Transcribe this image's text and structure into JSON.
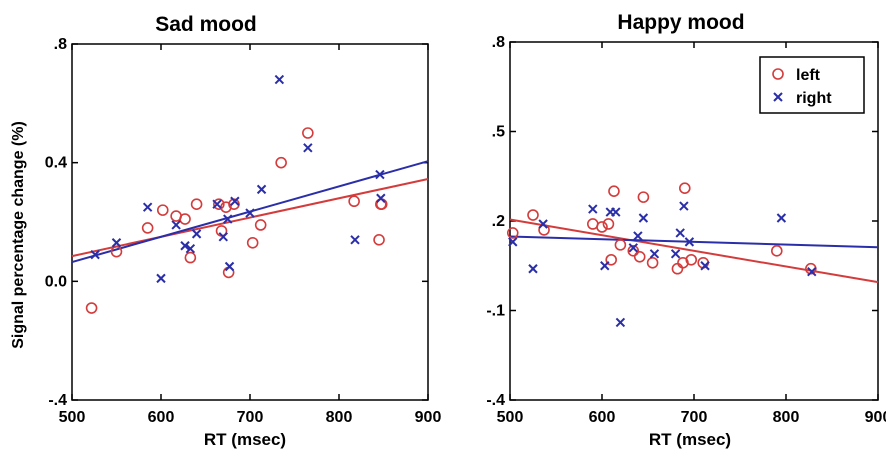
{
  "chart_data": [
    {
      "type": "scatter",
      "title": "Sad mood",
      "xlabel": "RT  (msec)",
      "ylabel": "Signal percentage change (%)",
      "xlim": [
        500,
        900
      ],
      "ylim": [
        -0.4,
        0.8
      ],
      "xticks": [
        {
          "v": 500,
          "label": "500"
        },
        {
          "v": 600,
          "label": "600"
        },
        {
          "v": 700,
          "label": "700"
        },
        {
          "v": 800,
          "label": "800"
        },
        {
          "v": 900,
          "label": "900"
        }
      ],
      "yticks": [
        {
          "v": -0.4,
          "label": "-.4"
        },
        {
          "v": 0.0,
          "label": "0.0"
        },
        {
          "v": 0.4,
          "label": "0.4"
        },
        {
          "v": 0.8,
          "label": ".8"
        }
      ],
      "series": [
        {
          "name": "left",
          "marker": "circle",
          "color": "#d43c3c",
          "points": [
            [
              522,
              -0.09
            ],
            [
              550,
              0.1
            ],
            [
              585,
              0.18
            ],
            [
              602,
              0.24
            ],
            [
              617,
              0.22
            ],
            [
              627,
              0.21
            ],
            [
              633,
              0.08
            ],
            [
              640,
              0.26
            ],
            [
              665,
              0.26
            ],
            [
              668,
              0.17
            ],
            [
              673,
              0.25
            ],
            [
              676,
              0.03
            ],
            [
              682,
              0.26
            ],
            [
              703,
              0.13
            ],
            [
              712,
              0.19
            ],
            [
              735,
              0.4
            ],
            [
              765,
              0.5
            ],
            [
              817,
              0.27
            ],
            [
              845,
              0.14
            ],
            [
              847,
              0.26
            ],
            [
              848,
              0.26
            ]
          ]
        },
        {
          "name": "right",
          "marker": "x",
          "color": "#2a2ea8",
          "points": [
            [
              526,
              0.09
            ],
            [
              550,
              0.13
            ],
            [
              585,
              0.25
            ],
            [
              600,
              0.01
            ],
            [
              617,
              0.19
            ],
            [
              627,
              0.12
            ],
            [
              633,
              0.11
            ],
            [
              640,
              0.16
            ],
            [
              663,
              0.26
            ],
            [
              670,
              0.15
            ],
            [
              675,
              0.21
            ],
            [
              677,
              0.05
            ],
            [
              683,
              0.27
            ],
            [
              700,
              0.23
            ],
            [
              713,
              0.31
            ],
            [
              733,
              0.68
            ],
            [
              765,
              0.45
            ],
            [
              818,
              0.14
            ],
            [
              846,
              0.36
            ],
            [
              847,
              0.28
            ]
          ]
        }
      ],
      "fit_lines": [
        {
          "series": "left",
          "color": "#d43c3c",
          "x": [
            500,
            900
          ],
          "y": [
            0.085,
            0.345
          ]
        },
        {
          "series": "right",
          "color": "#2a2ea8",
          "x": [
            500,
            900
          ],
          "y": [
            0.065,
            0.405
          ]
        }
      ]
    },
    {
      "type": "scatter",
      "title": "Happy mood",
      "xlabel": "RT  (msec)",
      "ylabel": "",
      "xlim": [
        500,
        900
      ],
      "ylim": [
        -0.4,
        0.8
      ],
      "xticks": [
        {
          "v": 500,
          "label": "500"
        },
        {
          "v": 600,
          "label": "600"
        },
        {
          "v": 700,
          "label": "700"
        },
        {
          "v": 800,
          "label": "800"
        },
        {
          "v": 900,
          "label": "900"
        }
      ],
      "yticks": [
        {
          "v": -0.4,
          "label": "-.4"
        },
        {
          "v": -0.1,
          "label": "-.1"
        },
        {
          "v": 0.2,
          "label": ".2"
        },
        {
          "v": 0.5,
          "label": ".5"
        },
        {
          "v": 0.8,
          "label": ".8"
        }
      ],
      "legend": {
        "position": "top-right",
        "entries": [
          {
            "label": "left",
            "marker": "circle",
            "color": "#d43c3c"
          },
          {
            "label": "right",
            "marker": "x",
            "color": "#2a2ea8"
          }
        ]
      },
      "series": [
        {
          "name": "left",
          "marker": "circle",
          "color": "#d43c3c",
          "points": [
            [
              503,
              0.16
            ],
            [
              525,
              0.22
            ],
            [
              537,
              0.17
            ],
            [
              590,
              0.19
            ],
            [
              600,
              0.18
            ],
            [
              607,
              0.19
            ],
            [
              610,
              0.07
            ],
            [
              613,
              0.3
            ],
            [
              620,
              0.12
            ],
            [
              634,
              0.1
            ],
            [
              641,
              0.08
            ],
            [
              645,
              0.28
            ],
            [
              655,
              0.06
            ],
            [
              682,
              0.04
            ],
            [
              688,
              0.06
            ],
            [
              690,
              0.31
            ],
            [
              697,
              0.07
            ],
            [
              710,
              0.06
            ],
            [
              790,
              0.1
            ],
            [
              827,
              0.04
            ]
          ]
        },
        {
          "name": "right",
          "marker": "x",
          "color": "#2a2ea8",
          "points": [
            [
              503,
              0.13
            ],
            [
              525,
              0.04
            ],
            [
              536,
              0.19
            ],
            [
              590,
              0.24
            ],
            [
              603,
              0.05
            ],
            [
              609,
              0.23
            ],
            [
              615,
              0.23
            ],
            [
              620,
              -0.14
            ],
            [
              634,
              0.11
            ],
            [
              639,
              0.15
            ],
            [
              645,
              0.21
            ],
            [
              657,
              0.09
            ],
            [
              680,
              0.09
            ],
            [
              685,
              0.16
            ],
            [
              689,
              0.25
            ],
            [
              695,
              0.13
            ],
            [
              712,
              0.05
            ],
            [
              795,
              0.21
            ],
            [
              828,
              0.03
            ]
          ]
        }
      ],
      "fit_lines": [
        {
          "series": "left",
          "color": "#d43c3c",
          "x": [
            500,
            900
          ],
          "y": [
            0.205,
            -0.005
          ]
        },
        {
          "series": "right",
          "color": "#2a2ea8",
          "x": [
            500,
            900
          ],
          "y": [
            0.148,
            0.112
          ]
        }
      ]
    }
  ]
}
